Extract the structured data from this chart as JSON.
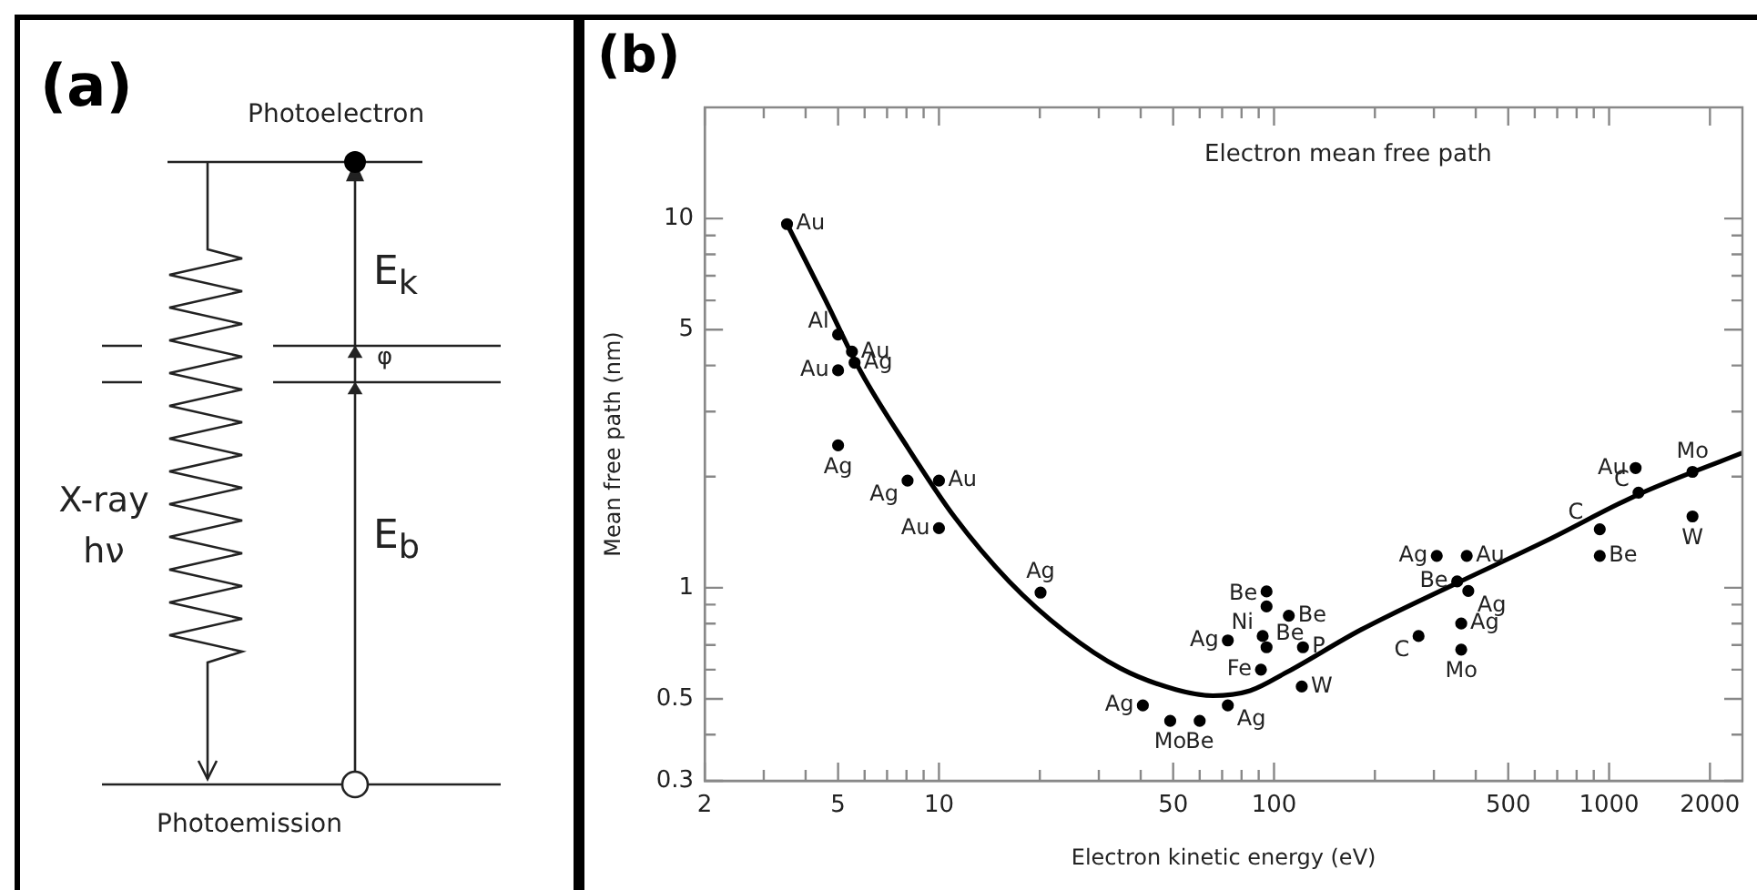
{
  "chart_data": [
    {
      "type": "other",
      "annotations": [
        "(a)",
        "Photoelectron",
        "E$_{k}$",
        "φ",
        "X-ray hν",
        "E$_{b}$",
        "Photoemission"
      ]
    },
    {
      "type": "scatter",
      "title": "Electron mean free path",
      "xlabel": "Electron kinetic energy (eV)",
      "ylabel": "Mean free path (nm)",
      "log": "xy",
      "xlim": [
        2,
        2500
      ],
      "ylim": [
        0.3,
        20
      ],
      "xticks": [
        2,
        {
          "value": 3,
          "label": null
        },
        {
          "value": 4,
          "label": null
        },
        5,
        {
          "value": 6,
          "label": null
        },
        {
          "value": 7,
          "label": null
        },
        {
          "value": 8,
          "label": null
        },
        {
          "value": 9,
          "label": null
        },
        10,
        {
          "value": 20,
          "label": null
        },
        {
          "value": 30,
          "label": null
        },
        {
          "value": 40,
          "label": null
        },
        50,
        {
          "value": 60,
          "label": null
        },
        {
          "value": 70,
          "label": null
        },
        {
          "value": 80,
          "label": null
        },
        {
          "value": 90,
          "label": null
        },
        100,
        {
          "value": 200,
          "label": null
        },
        {
          "value": 300,
          "label": null
        },
        {
          "value": 400,
          "label": null
        },
        500,
        {
          "value": 600,
          "label": null
        },
        {
          "value": 700,
          "label": null
        },
        {
          "value": 800,
          "label": null
        },
        {
          "value": 900,
          "label": null
        },
        1000,
        2000
      ],
      "yticks": [
        0.3,
        {
          "value": 0.4,
          "label": null
        },
        0.5,
        {
          "value": 0.6,
          "label": null
        },
        {
          "value": 0.7,
          "label": null
        },
        {
          "value": 0.8,
          "label": null
        },
        {
          "value": 0.9,
          "label": null
        },
        1,
        {
          "value": 2,
          "label": null
        },
        {
          "value": 3,
          "label": null
        },
        {
          "value": 4,
          "label": null
        },
        5,
        {
          "value": 6,
          "label": null
        },
        {
          "value": 7,
          "label": null
        },
        {
          "value": 8,
          "label": null
        },
        {
          "value": 9,
          "label": null
        },
        10
      ],
      "series": [
        {
          "type": "scatter",
          "color": "#000000",
          "marker": "circle",
          "x": [
            3.52,
            5,
            5.5,
            5.6,
            5,
            5,
            8.06,
            10,
            10,
            20.1,
            40.6,
            49,
            60,
            72.8,
            91.4,
            72.8,
            92.5,
            95,
            95,
            95,
            110.7,
            122,
            121,
            270,
            306,
            376,
            352,
            380,
            362,
            362,
            938,
            938,
            1224,
            1774,
            1200,
            1774
          ],
          "values": [
            9.66,
            4.85,
            4.36,
            4.07,
            3.88,
            2.43,
            1.95,
            1.95,
            1.45,
            0.97,
            0.48,
            0.436,
            0.436,
            0.48,
            0.6,
            0.72,
            0.74,
            0.69,
            0.977,
            0.89,
            0.84,
            0.69,
            0.54,
            0.74,
            1.22,
            1.22,
            1.04,
            0.98,
            0.8,
            0.68,
            1.44,
            1.22,
            1.81,
            1.56,
            2.11,
            2.06
          ]
        },
        {
          "type": "line",
          "color": "#000000",
          "marker": "none",
          "x": [
            3.52,
            4.54,
            5.86,
            8.06,
            11.1,
            16.2,
            23.8,
            34.8,
            50.9,
            65.7,
            84.8,
            109,
            182,
            344,
            649,
            1224,
            2500
          ],
          "values": [
            9.66,
            6.12,
            3.83,
            2.4,
            1.56,
            1.04,
            0.76,
            0.605,
            0.53,
            0.51,
            0.526,
            0.59,
            0.77,
            1.02,
            1.34,
            1.79,
            2.32
          ]
        }
      ],
      "annotations": [
        "(b)",
        {
          "text": "Au",
          "x": 3.52,
          "y": 9.66
        },
        {
          "text": "Al",
          "x": 5,
          "y": 4.85
        },
        {
          "text": "Au",
          "x": 5.5,
          "y": 4.36
        },
        {
          "text": "Ag",
          "x": 5.6,
          "y": 4.07
        },
        {
          "text": "Au",
          "x": 5,
          "y": 3.88
        },
        {
          "text": "Ag",
          "x": 5,
          "y": 2.43
        },
        {
          "text": "Ag",
          "x": 8.06,
          "y": 1.95
        },
        {
          "text": "Au",
          "x": 10,
          "y": 1.95
        },
        {
          "text": "Au",
          "x": 10,
          "y": 1.45
        },
        {
          "text": "Ag",
          "x": 20.1,
          "y": 0.97
        },
        {
          "text": "Ag",
          "x": 40.6,
          "y": 0.48
        },
        {
          "text": "Mo",
          "x": 49,
          "y": 0.436
        },
        {
          "text": "Be",
          "x": 60,
          "y": 0.436
        },
        {
          "text": "Ag",
          "x": 72.8,
          "y": 0.48
        },
        {
          "text": "Fe",
          "x": 91.4,
          "y": 0.6
        },
        {
          "text": "Ag",
          "x": 72.8,
          "y": 0.72
        },
        {
          "text": "Ni",
          "x": 92.5,
          "y": 0.74
        },
        {
          "text": "Be",
          "x": 95,
          "y": 0.69
        },
        {
          "text": "Be",
          "x": 95,
          "y": 0.89
        },
        {
          "text": "Be",
          "x": 110.7,
          "y": 0.84
        },
        {
          "text": "P",
          "x": 122,
          "y": 0.69
        },
        {
          "text": "W",
          "x": 121,
          "y": 0.54
        },
        {
          "text": "C",
          "x": 270,
          "y": 0.74
        },
        {
          "text": "Ag",
          "x": 306,
          "y": 1.22
        },
        {
          "text": "Au",
          "x": 376,
          "y": 1.22
        },
        {
          "text": "Be",
          "x": 352,
          "y": 1.04
        },
        {
          "text": "Ag",
          "x": 380,
          "y": 0.98
        },
        {
          "text": "Ag",
          "x": 362,
          "y": 0.8
        },
        {
          "text": "Mo",
          "x": 362,
          "y": 0.68
        },
        {
          "text": "C",
          "x": 938,
          "y": 1.44
        },
        {
          "text": "Be",
          "x": 938,
          "y": 1.22
        },
        {
          "text": "C",
          "x": 1224,
          "y": 1.81
        },
        {
          "text": "W",
          "x": 1774,
          "y": 1.56
        },
        {
          "text": "Au",
          "x": 1200,
          "y": 2.11
        },
        {
          "text": "Mo",
          "x": 1774,
          "y": 2.06
        }
      ]
    }
  ]
}
